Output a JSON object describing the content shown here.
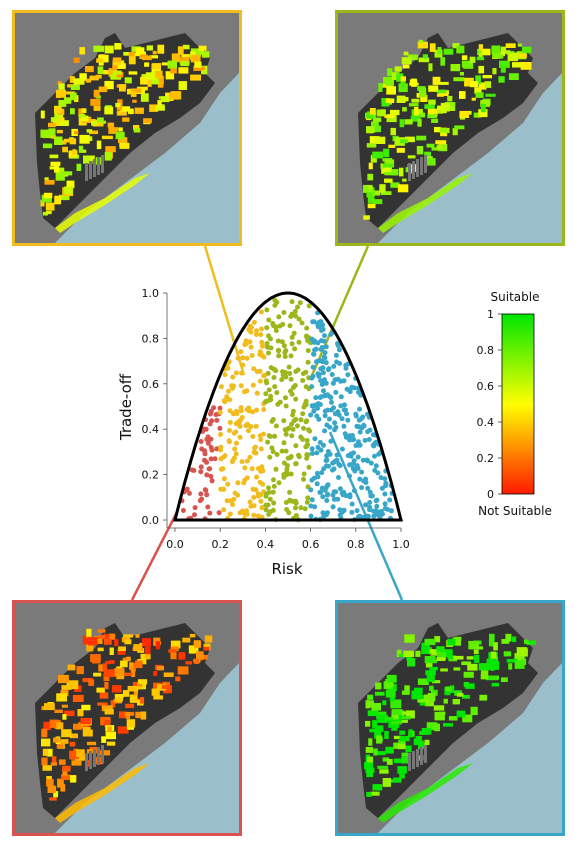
{
  "chart_data": {
    "type": "scatter",
    "xlabel": "Risk",
    "ylabel": "Trade-off",
    "xlim": [
      0,
      1
    ],
    "ylim": [
      0,
      1
    ],
    "x_ticks": [
      "0.0",
      "0.2",
      "0.4",
      "0.6",
      "0.8",
      "1.0"
    ],
    "y_ticks": [
      "0.0",
      "0.2",
      "0.4",
      "0.6",
      "0.8",
      "1.0"
    ],
    "boundary": "parabola y = 4x(1-x)",
    "grid": false,
    "series": [
      {
        "x_range": [
          0.0,
          0.2
        ],
        "color": "#d9534f",
        "count": 60
      },
      {
        "x_range": [
          0.2,
          0.4
        ],
        "color": "#f0bc1e",
        "count": 170
      },
      {
        "x_range": [
          0.4,
          0.6
        ],
        "color": "#9bb71a",
        "count": 200
      },
      {
        "x_range": [
          0.6,
          1.0
        ],
        "color": "#38a6c9",
        "count": 320
      }
    ],
    "colorbar": {
      "top_label": "Suitable",
      "bottom_label": "Not Suitable",
      "ticks": [
        "0",
        "0.2",
        "0.4",
        "0.6",
        "0.8",
        "1"
      ],
      "range": [
        0,
        1
      ],
      "colors": [
        "#ff1a00",
        "#ffff00",
        "#00e600"
      ]
    }
  },
  "map_panels": [
    {
      "id": "map-yellow",
      "border_color": "#f0bc1e",
      "suitability": 0.55
    },
    {
      "id": "map-green",
      "border_color": "#9bb71a",
      "suitability": 0.7
    },
    {
      "id": "map-red",
      "border_color": "#d9534f",
      "suitability": 0.35
    },
    {
      "id": "map-blue",
      "border_color": "#38a6c9",
      "suitability": 0.92
    }
  ],
  "colors": {
    "land_background": "#7a7a7a",
    "sea": "#9bbfca",
    "curve": "#000000"
  }
}
